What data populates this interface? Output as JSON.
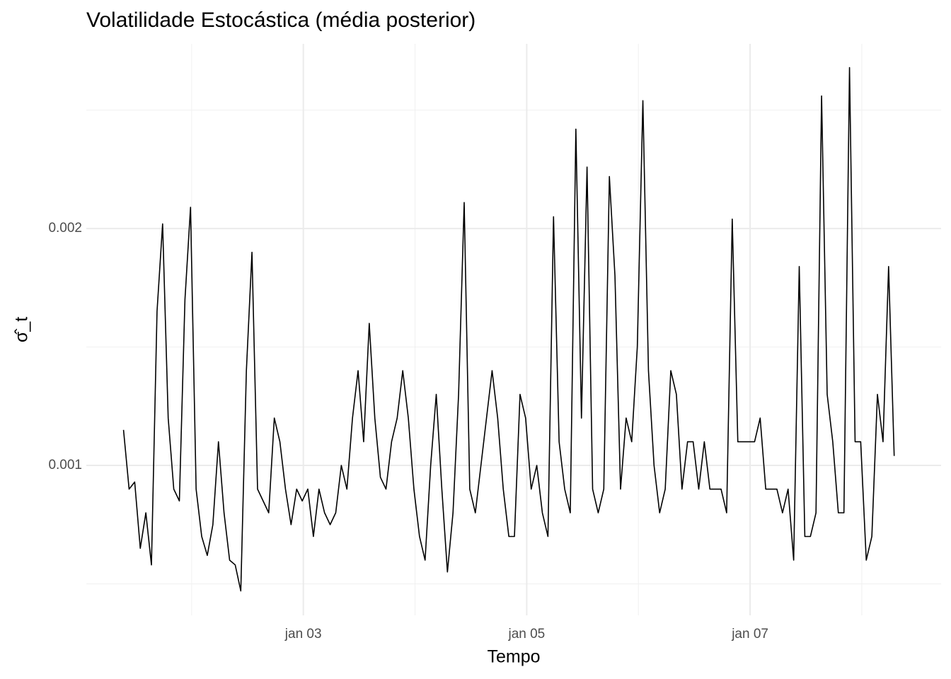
{
  "chart_data": {
    "type": "line",
    "title": "Volatilidade Estocástica (média posterior)",
    "xlabel": "Tempo",
    "ylabel": "σ̂_t",
    "x": [
      1.39,
      1.44,
      1.49,
      1.54,
      1.59,
      1.64,
      1.69,
      1.74,
      1.79,
      1.84,
      1.89,
      1.94,
      1.99,
      2.04,
      2.09,
      2.14,
      2.19,
      2.24,
      2.29,
      2.34,
      2.39,
      2.44,
      2.49,
      2.54,
      2.59,
      2.64,
      2.69,
      2.74,
      2.79,
      2.84,
      2.89,
      2.94,
      2.99,
      3.04,
      3.09,
      3.14,
      3.19,
      3.24,
      3.29,
      3.34,
      3.39,
      3.44,
      3.49,
      3.54,
      3.59,
      3.64,
      3.69,
      3.74,
      3.79,
      3.84,
      3.89,
      3.94,
      3.99,
      4.04,
      4.09,
      4.14,
      4.19,
      4.24,
      4.29,
      4.34,
      4.39,
      4.44,
      4.49,
      4.54,
      4.59,
      4.64,
      4.69,
      4.74,
      4.79,
      4.84,
      4.89,
      4.94,
      4.99,
      5.04,
      5.09,
      5.14,
      5.19,
      5.24,
      5.29,
      5.34,
      5.39,
      5.44,
      5.49,
      5.54,
      5.59,
      5.64,
      5.69,
      5.74,
      5.79,
      5.84,
      5.89,
      5.94,
      5.99,
      6.04,
      6.09,
      6.14,
      6.19,
      6.24,
      6.29,
      6.34,
      6.39,
      6.44,
      6.49,
      6.54,
      6.59,
      6.64,
      6.69,
      6.74,
      6.79,
      6.84,
      6.89,
      6.94,
      6.99,
      7.04,
      7.09,
      7.14,
      7.19,
      7.24,
      7.29,
      7.34,
      7.39,
      7.44,
      7.49,
      7.54,
      7.59,
      7.64,
      7.69,
      7.74,
      7.79,
      7.84,
      7.89,
      7.94,
      7.99,
      8.04,
      8.09,
      8.14,
      8.19,
      8.24,
      8.29
    ],
    "series": [
      {
        "color": "#000000",
        "values": [
          0.00115,
          0.0009,
          0.00093,
          0.00065,
          0.0008,
          0.00058,
          0.00165,
          0.00202,
          0.0012,
          0.0009,
          0.00085,
          0.0017,
          0.00209,
          0.0009,
          0.0007,
          0.00062,
          0.00075,
          0.0011,
          0.0008,
          0.0006,
          0.00058,
          0.00047,
          0.0014,
          0.0019,
          0.0009,
          0.00085,
          0.0008,
          0.0012,
          0.0011,
          0.0009,
          0.00075,
          0.0009,
          0.00085,
          0.0009,
          0.0007,
          0.0009,
          0.0008,
          0.00075,
          0.0008,
          0.001,
          0.0009,
          0.0012,
          0.0014,
          0.0011,
          0.0016,
          0.0012,
          0.00095,
          0.0009,
          0.0011,
          0.0012,
          0.0014,
          0.0012,
          0.0009,
          0.0007,
          0.0006,
          0.001,
          0.0013,
          0.0009,
          0.00055,
          0.0008,
          0.0013,
          0.00211,
          0.0009,
          0.0008,
          0.001,
          0.0012,
          0.0014,
          0.0012,
          0.0009,
          0.0007,
          0.0007,
          0.0013,
          0.0012,
          0.0009,
          0.001,
          0.0008,
          0.0007,
          0.00205,
          0.0011,
          0.0009,
          0.0008,
          0.00242,
          0.0012,
          0.00226,
          0.0009,
          0.0008,
          0.0009,
          0.00222,
          0.0018,
          0.0009,
          0.0012,
          0.0011,
          0.0015,
          0.00254,
          0.0014,
          0.001,
          0.0008,
          0.0009,
          0.0014,
          0.0013,
          0.0009,
          0.0011,
          0.0011,
          0.0009,
          0.0011,
          0.0009,
          0.0009,
          0.0009,
          0.0008,
          0.00204,
          0.0011,
          0.0011,
          0.0011,
          0.0011,
          0.0012,
          0.0009,
          0.0009,
          0.0009,
          0.0008,
          0.0009,
          0.0006,
          0.00184,
          0.0007,
          0.0007,
          0.0008,
          0.00256,
          0.0013,
          0.0011,
          0.0008,
          0.0008,
          0.00268,
          0.0011,
          0.0011,
          0.0006,
          0.0007,
          0.0013,
          0.0011,
          0.00184,
          0.00104
        ]
      }
    ],
    "xlim": [
      1.057,
      8.71
    ],
    "xticks": [
      {
        "value": 3,
        "label": "jan 03"
      },
      {
        "value": 5,
        "label": "jan 05"
      },
      {
        "value": 7,
        "label": "jan 07"
      }
    ],
    "xminorticks": [
      2,
      4,
      6,
      8
    ],
    "ylim": [
      0.000367,
      0.00278
    ],
    "yticks": [
      0.001,
      0.002
    ],
    "yminorticks": [
      0.0005,
      0.0015,
      0.0025
    ],
    "grid": true
  }
}
